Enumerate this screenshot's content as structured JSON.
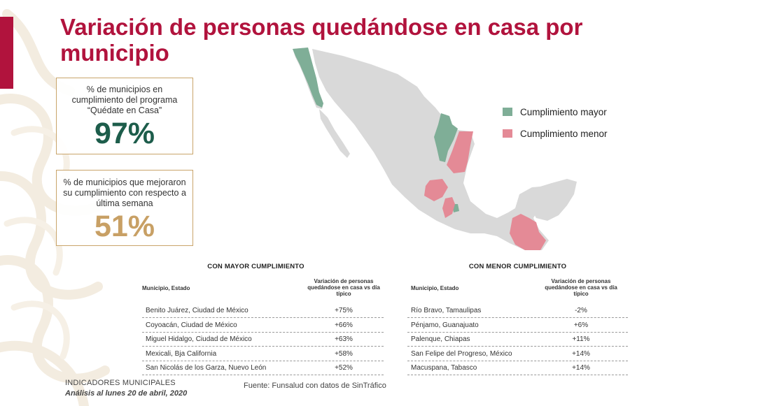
{
  "title": "Variación de personas quedándose en casa por municipio",
  "kpis": [
    {
      "label": "% de municipios en cumplimiento del programa “Quédate en Casa”",
      "value": "97%"
    },
    {
      "label": "% de municipios que mejoraron su cumplimiento con respecto a última semana",
      "value": "51%"
    }
  ],
  "legend": [
    {
      "label": "Cumplimiento mayor",
      "color": "#7fae97"
    },
    {
      "label": "Cumplimiento menor",
      "color": "#e48a96"
    }
  ],
  "colors": {
    "accent": "#b1133d",
    "map_base": "#d9d9d9",
    "gold": "#c8a065",
    "dark_green": "#1d5d4b"
  },
  "tables": [
    {
      "title": "CON MAYOR CUMPLIMIENTO",
      "col1": "Municipio, Estado",
      "col2": "Variación de personas quedándose en casa vs día típico",
      "rows": [
        {
          "municipio": "Benito Juárez, Ciudad de México",
          "variacion": "+75%"
        },
        {
          "municipio": "Coyoacán, Ciudad de México",
          "variacion": "+66%"
        },
        {
          "municipio": "Miguel Hidalgo, Ciudad de México",
          "variacion": "+63%"
        },
        {
          "municipio": "Mexicali, Bja California",
          "variacion": "+58%"
        },
        {
          "municipio": "San Nicolás de los Garza, Nuevo León",
          "variacion": "+52%"
        }
      ]
    },
    {
      "title": "CON MENOR CUMPLIMIENTO",
      "col1": "Municipio, Estado",
      "col2": "Variación de personas quedándose en casa vs día típico",
      "rows": [
        {
          "municipio": "Río Bravo, Tamaulipas",
          "variacion": "-2%"
        },
        {
          "municipio": "Pénjamo, Guanajuato",
          "variacion": "+6%"
        },
        {
          "municipio": "Palenque, Chiapas",
          "variacion": "+11%"
        },
        {
          "municipio": "San Felipe del Progreso, México",
          "variacion": "+14%"
        },
        {
          "municipio": "Macuspana, Tabasco",
          "variacion": "+14%"
        }
      ]
    }
  ],
  "footer": {
    "line1": "INDICADORES MUNICIPALES",
    "line2": "Análisis al lunes 20 de abril, 2020",
    "source": "Fuente: Funsalud con datos de SinTráfico"
  }
}
